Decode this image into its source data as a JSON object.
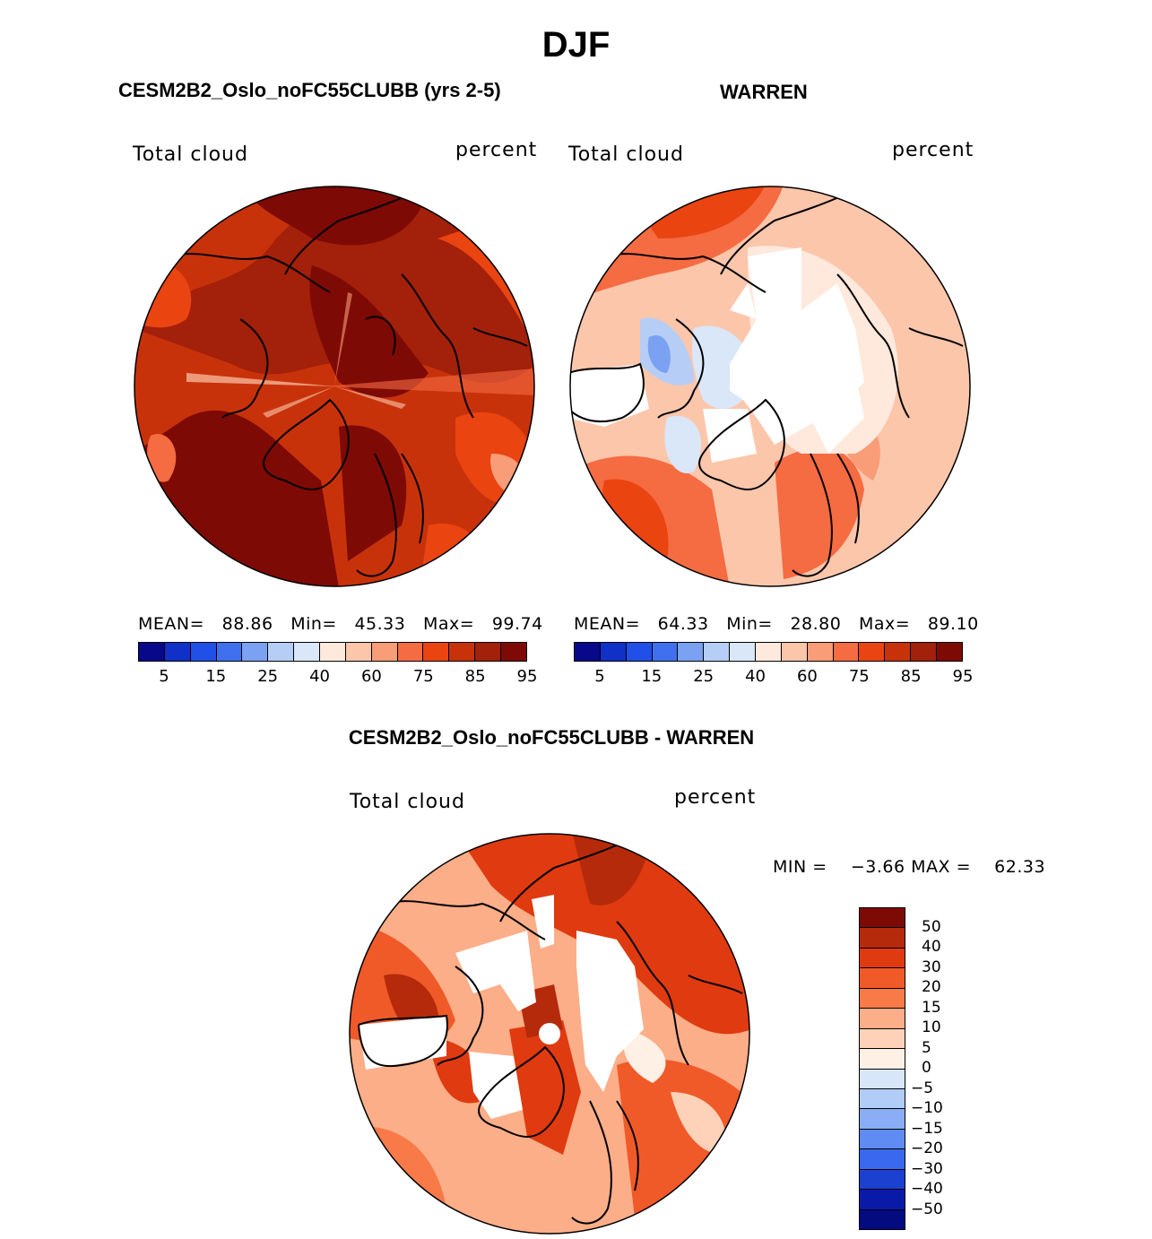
{
  "figure": {
    "title": "DJF",
    "diff_title": "CESM2B2_Oslo_noFC55CLUBB - WARREN"
  },
  "chart_data": [
    {
      "type": "heatmap",
      "projection": "north polar stereographic",
      "title": "CESM2B2_Oslo_noFC55CLUBB (yrs 2-5)",
      "left_label": "Total cloud",
      "right_label": "percent",
      "stats": {
        "mean_label": "MEAN=",
        "mean": "88.86",
        "min_label": "Min=",
        "min": "45.33",
        "max_label": "Max=",
        "max": "99.74"
      },
      "colorbar": {
        "levels": [
          "5",
          "15",
          "25",
          "40",
          "60",
          "75",
          "85",
          "95"
        ],
        "colors": [
          "#08088a",
          "#1030c8",
          "#2050e8",
          "#4070f0",
          "#7ba1f2",
          "#b6cef6",
          "#d9e7f9",
          "#fee9dc",
          "#fcc6ab",
          "#f99c78",
          "#f56b42",
          "#ea4411",
          "#c8320b",
          "#a3200a",
          "#7e0a05"
        ]
      }
    },
    {
      "type": "heatmap",
      "projection": "north polar stereographic",
      "title": "WARREN",
      "left_label": "Total cloud",
      "right_label": "percent",
      "stats": {
        "mean_label": "MEAN=",
        "mean": "64.33",
        "min_label": "Min=",
        "min": "28.80",
        "max_label": "Max=",
        "max": "89.10"
      },
      "colorbar": {
        "levels": [
          "5",
          "15",
          "25",
          "40",
          "60",
          "75",
          "85",
          "95"
        ],
        "colors": [
          "#08088a",
          "#1030c8",
          "#2050e8",
          "#4070f0",
          "#7ba1f2",
          "#b6cef6",
          "#d9e7f9",
          "#fee9dc",
          "#fcc6ab",
          "#f99c78",
          "#f56b42",
          "#ea4411",
          "#c8320b",
          "#a3200a",
          "#7e0a05"
        ]
      }
    },
    {
      "type": "heatmap",
      "projection": "north polar stereographic",
      "title": "CESM2B2_Oslo_noFC55CLUBB - WARREN",
      "left_label": "Total cloud",
      "right_label": "percent",
      "stats": {
        "min_label": "MIN =",
        "min": "−3.66",
        "max_label": "MAX =",
        "max": "62.33"
      },
      "colorbar": {
        "levels": [
          "50",
          "40",
          "30",
          "20",
          "15",
          "10",
          "5",
          "0",
          "−5",
          "−10",
          "−15",
          "−20",
          "−30",
          "−40",
          "−50"
        ],
        "colors": [
          "#7e0a05",
          "#b52a0b",
          "#e03a10",
          "#f05a28",
          "#f87a48",
          "#fcae88",
          "#fdd2b8",
          "#fff0e6",
          "#d8e6fa",
          "#b2ccf8",
          "#8aadf5",
          "#5f8cf2",
          "#3a68ee",
          "#1c40d0",
          "#0a1aa8",
          "#040a80"
        ]
      }
    }
  ]
}
